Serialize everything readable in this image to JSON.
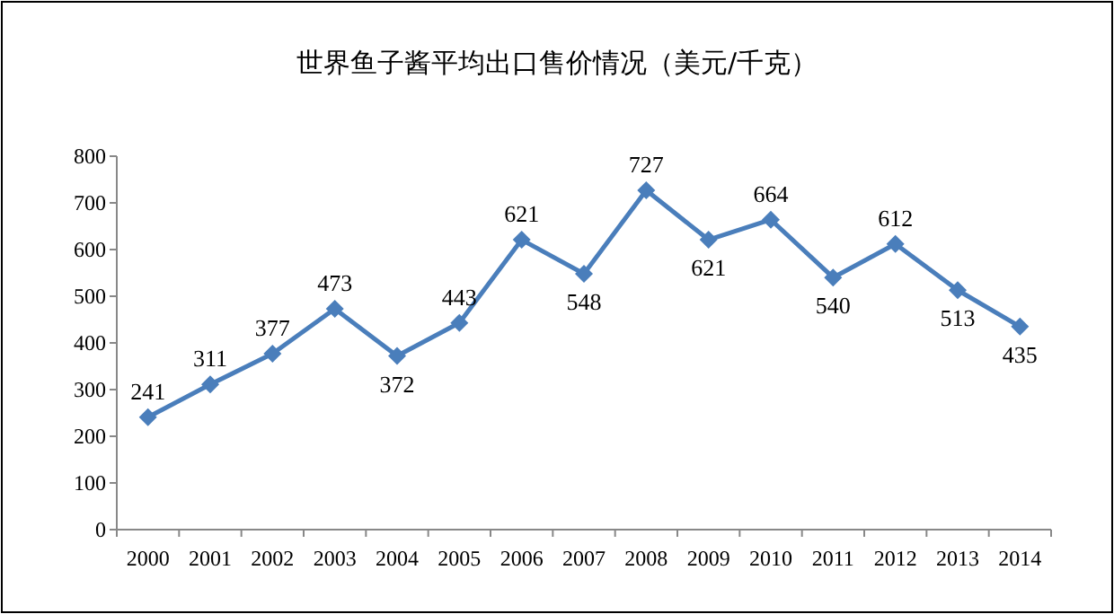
{
  "chart_data": {
    "type": "line",
    "title": "世界鱼子酱平均出口售价情况（美元/千克）",
    "categories": [
      "2000",
      "2001",
      "2002",
      "2003",
      "2004",
      "2005",
      "2006",
      "2007",
      "2008",
      "2009",
      "2010",
      "2011",
      "2012",
      "2013",
      "2014"
    ],
    "values": [
      241,
      311,
      377,
      473,
      372,
      443,
      621,
      548,
      727,
      621,
      664,
      540,
      612,
      513,
      435
    ],
    "color": "#4a7ebb",
    "marker": "diamond",
    "ylim": [
      0,
      800
    ],
    "yticks": [
      0,
      100,
      200,
      300,
      400,
      500,
      600,
      700,
      800
    ],
    "data_labels": true
  }
}
